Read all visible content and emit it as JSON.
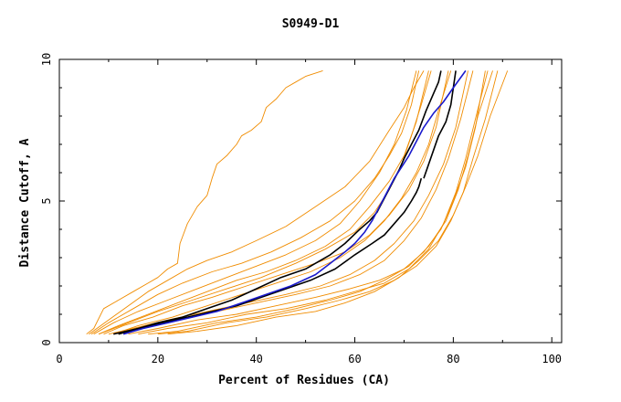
{
  "chart_data": {
    "type": "line",
    "title": "S0949-D1",
    "xlabel": "Percent of Residues (CA)",
    "ylabel": "Distance Cutoff, A",
    "xlim": [
      0,
      102
    ],
    "ylim": [
      0,
      10
    ],
    "x_ticks": [
      0,
      20,
      40,
      60,
      80,
      100
    ],
    "x_tick_labels": [
      "0",
      "20",
      "40",
      "60",
      "80",
      "100"
    ],
    "y_ticks": [
      0,
      5,
      10
    ],
    "y_tick_labels": [
      "0",
      "5",
      "10"
    ],
    "colors": {
      "orange": "#f08c00",
      "black": "#000000",
      "blue": "#1a1acc",
      "frame": "#000000"
    },
    "series": [
      {
        "color": "orange",
        "x": [
          5.5,
          7,
          9,
          12,
          15,
          18,
          20,
          22,
          24,
          24.5,
          26,
          28,
          30,
          31,
          32,
          34,
          36,
          37,
          39,
          41,
          42,
          44,
          46,
          48,
          50,
          53.5
        ],
        "y": [
          0.3,
          0.5,
          1.2,
          1.5,
          1.8,
          2.1,
          2.3,
          2.6,
          2.8,
          3.5,
          4.2,
          4.8,
          5.2,
          5.8,
          6.3,
          6.6,
          7.0,
          7.3,
          7.5,
          7.8,
          8.3,
          8.6,
          9.0,
          9.2,
          9.4,
          9.6
        ]
      },
      {
        "color": "orange",
        "x": [
          6,
          10,
          14,
          18,
          22,
          26,
          30,
          35,
          40,
          46,
          52,
          58,
          63,
          67,
          70,
          72,
          74
        ],
        "y": [
          0.3,
          0.8,
          1.3,
          1.8,
          2.2,
          2.6,
          2.9,
          3.2,
          3.6,
          4.1,
          4.8,
          5.5,
          6.4,
          7.5,
          8.3,
          9.0,
          9.6
        ]
      },
      {
        "color": "orange",
        "x": [
          6.5,
          10,
          15,
          20,
          25,
          31,
          37,
          43,
          49,
          55,
          60,
          64,
          67,
          69.5,
          71.5,
          73
        ],
        "y": [
          0.3,
          0.7,
          1.2,
          1.7,
          2.1,
          2.5,
          2.8,
          3.2,
          3.7,
          4.3,
          5.0,
          5.8,
          6.6,
          7.4,
          8.4,
          9.6
        ]
      },
      {
        "color": "orange",
        "x": [
          7,
          11,
          16,
          22,
          28,
          34,
          40,
          46,
          52,
          57,
          61,
          65,
          68,
          70.5,
          72.5
        ],
        "y": [
          0.3,
          0.7,
          1.1,
          1.5,
          1.9,
          2.3,
          2.7,
          3.1,
          3.6,
          4.2,
          5.0,
          6.0,
          7.0,
          8.2,
          9.6
        ]
      },
      {
        "color": "orange",
        "x": [
          8,
          12,
          18,
          24,
          30,
          36,
          42,
          48,
          54,
          59,
          63,
          67,
          70,
          72.5,
          75
        ],
        "y": [
          0.3,
          0.6,
          1.0,
          1.4,
          1.8,
          2.2,
          2.5,
          2.9,
          3.4,
          4.0,
          4.8,
          5.7,
          6.6,
          7.8,
          9.6
        ]
      },
      {
        "color": "orange",
        "x": [
          9,
          13,
          19,
          25,
          31,
          38,
          45,
          52,
          58,
          63,
          67,
          71,
          74,
          76.5,
          79
        ],
        "y": [
          0.3,
          0.6,
          0.9,
          1.3,
          1.6,
          2.0,
          2.4,
          2.8,
          3.2,
          3.8,
          4.5,
          5.4,
          6.4,
          7.6,
          9.6
        ]
      },
      {
        "color": "orange",
        "x": [
          10,
          15,
          22,
          30,
          38,
          46,
          53,
          59,
          64,
          68,
          72,
          75,
          78,
          80.5,
          83
        ],
        "y": [
          0.3,
          0.5,
          0.8,
          1.1,
          1.4,
          1.7,
          2.0,
          2.4,
          2.9,
          3.5,
          4.3,
          5.2,
          6.3,
          7.6,
          9.6
        ]
      },
      {
        "color": "orange",
        "x": [
          12,
          17,
          24,
          32,
          40,
          48,
          55,
          61,
          66,
          70,
          73.5,
          76.5,
          79,
          81.5,
          84
        ],
        "y": [
          0.3,
          0.5,
          0.8,
          1.1,
          1.4,
          1.7,
          2.0,
          2.4,
          2.9,
          3.6,
          4.4,
          5.4,
          6.5,
          7.9,
          9.6
        ]
      },
      {
        "color": "orange",
        "x": [
          14,
          20,
          28,
          36,
          44,
          52,
          59,
          65,
          70,
          74,
          77.5,
          80,
          82.5,
          84.5,
          86.5
        ],
        "y": [
          0.3,
          0.5,
          0.8,
          1.0,
          1.3,
          1.6,
          1.9,
          2.2,
          2.6,
          3.2,
          4.0,
          5.0,
          6.2,
          7.6,
          9.6
        ]
      },
      {
        "color": "orange",
        "x": [
          16,
          22,
          30,
          38,
          46,
          54,
          60,
          66,
          71,
          75,
          78,
          80.5,
          82.5,
          84.5,
          87
        ],
        "y": [
          0.3,
          0.5,
          0.7,
          1.0,
          1.2,
          1.5,
          1.8,
          2.1,
          2.6,
          3.3,
          4.2,
          5.3,
          6.5,
          7.9,
          9.6
        ]
      },
      {
        "color": "orange",
        "x": [
          18,
          24,
          32,
          40,
          48,
          55,
          61,
          66,
          71,
          75,
          78.5,
          81,
          83,
          85,
          88
        ],
        "y": [
          0.3,
          0.4,
          0.7,
          0.9,
          1.2,
          1.5,
          1.8,
          2.2,
          2.7,
          3.4,
          4.3,
          5.4,
          6.6,
          8.0,
          9.6
        ]
      },
      {
        "color": "orange",
        "x": [
          20,
          26,
          34,
          42,
          50,
          57,
          63,
          68,
          72.5,
          76.5,
          79.5,
          82,
          84,
          86.5,
          89
        ],
        "y": [
          0.3,
          0.4,
          0.7,
          0.9,
          1.2,
          1.5,
          1.8,
          2.2,
          2.7,
          3.4,
          4.3,
          5.3,
          6.5,
          7.9,
          9.6
        ]
      },
      {
        "color": "orange",
        "x": [
          22,
          28,
          36,
          44,
          52,
          58,
          64,
          69,
          73,
          77,
          80,
          82.5,
          85,
          87.5,
          91
        ],
        "y": [
          0.3,
          0.4,
          0.6,
          0.9,
          1.1,
          1.4,
          1.8,
          2.3,
          2.9,
          3.6,
          4.5,
          5.5,
          6.6,
          8.0,
          9.6
        ]
      },
      {
        "color": "orange",
        "x": [
          8,
          14,
          20,
          27,
          34,
          41,
          48,
          54,
          60,
          64,
          67,
          69.5,
          71.5,
          73.5,
          75.5
        ],
        "y": [
          0.3,
          0.7,
          1.1,
          1.5,
          1.9,
          2.3,
          2.8,
          3.3,
          3.9,
          4.6,
          5.4,
          6.3,
          7.3,
          8.4,
          9.6
        ]
      },
      {
        "color": "orange",
        "x": [
          11,
          16,
          23,
          30,
          37,
          44,
          51,
          57,
          62,
          66,
          69.5,
          72.5,
          75,
          77,
          79.5
        ],
        "y": [
          0.3,
          0.6,
          0.9,
          1.3,
          1.7,
          2.1,
          2.5,
          3.0,
          3.6,
          4.3,
          5.1,
          6.0,
          7.0,
          8.2,
          9.6
        ]
      },
      {
        "color": "black",
        "x": [
          12,
          16,
          20,
          25,
          30,
          35,
          40,
          45,
          50,
          55,
          58,
          61,
          63,
          64.5,
          66,
          67.5,
          69,
          70,
          71.5,
          73,
          74.5,
          76,
          77,
          77.5
        ],
        "y": [
          0.3,
          0.5,
          0.7,
          0.9,
          1.2,
          1.5,
          1.9,
          2.3,
          2.6,
          3.1,
          3.5,
          4.0,
          4.3,
          4.6,
          5.1,
          5.6,
          6.1,
          6.5,
          7.0,
          7.5,
          8.2,
          8.8,
          9.2,
          9.6
        ]
      },
      {
        "color": "black",
        "x": [
          11,
          16,
          21,
          26,
          31,
          36,
          41,
          46,
          51,
          56,
          60,
          63.5,
          66,
          68,
          70,
          71.5,
          72.5,
          73,
          73.5
        ],
        "y": [
          0.3,
          0.5,
          0.7,
          0.9,
          1.1,
          1.3,
          1.6,
          1.9,
          2.2,
          2.6,
          3.1,
          3.5,
          3.8,
          4.2,
          4.6,
          5.0,
          5.3,
          5.5,
          5.8
        ]
      },
      {
        "color": "black",
        "x": [
          74,
          75,
          76,
          77,
          78.5,
          79.5,
          80.5
        ],
        "y": [
          5.8,
          6.3,
          6.8,
          7.3,
          7.8,
          8.4,
          9.6
        ]
      },
      {
        "color": "blue",
        "x": [
          13,
          17,
          22,
          27,
          32,
          37,
          42,
          47,
          52,
          55,
          58,
          60,
          62,
          63.5,
          65,
          66.5,
          68,
          69.5,
          71,
          72.5,
          74,
          76,
          78,
          80,
          82.5
        ],
        "y": [
          0.3,
          0.5,
          0.7,
          0.9,
          1.1,
          1.4,
          1.7,
          2.0,
          2.4,
          2.8,
          3.2,
          3.5,
          3.9,
          4.3,
          4.8,
          5.3,
          5.8,
          6.2,
          6.6,
          7.1,
          7.6,
          8.1,
          8.5,
          9.0,
          9.6
        ]
      }
    ]
  }
}
